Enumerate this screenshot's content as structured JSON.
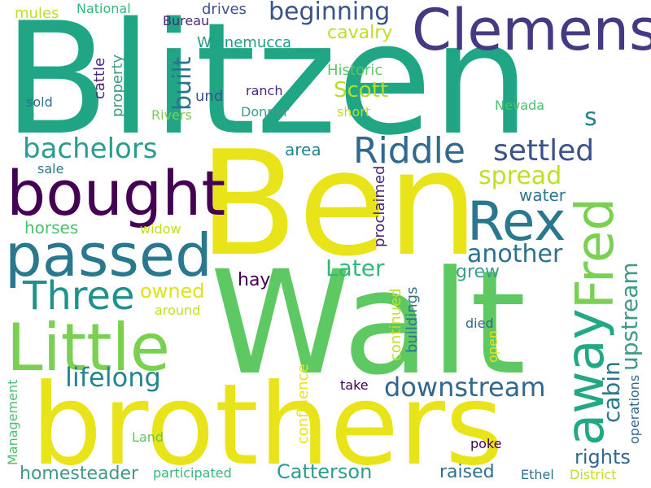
{
  "words": [
    {
      "text": "Blitzen",
      "color": "#21a685"
    },
    {
      "text": "Ben",
      "color": "#e8e419"
    },
    {
      "text": "Walt",
      "color": "#5ec962"
    },
    {
      "text": "brothers",
      "color": "#e8e419"
    },
    {
      "text": "Clemens",
      "color": "#443a83"
    },
    {
      "text": "bought",
      "color": "#440154"
    },
    {
      "text": "passed",
      "color": "#2a788e"
    },
    {
      "text": "Little",
      "color": "#7ad151"
    },
    {
      "text": "Rex",
      "color": "#2a788e"
    },
    {
      "text": "away",
      "color": "#22a884"
    },
    {
      "text": "Fred",
      "color": "#7ad151"
    },
    {
      "text": "Riddle",
      "color": "#31688e"
    },
    {
      "text": "Three",
      "color": "#20928c"
    },
    {
      "text": "settled",
      "color": "#3b528b"
    },
    {
      "text": "bachelors",
      "color": "#2a9d8f"
    },
    {
      "text": "beginning",
      "color": "#3b528b"
    },
    {
      "text": "built",
      "color": "#2c728e"
    },
    {
      "text": "lifelong",
      "color": "#25858e"
    },
    {
      "text": "downstream",
      "color": "#31688e"
    },
    {
      "text": "upstream",
      "color": "#3f9a86"
    },
    {
      "text": "cabin",
      "color": "#2a788e"
    },
    {
      "text": "Later",
      "color": "#35b779"
    },
    {
      "text": "another",
      "color": "#2c728e"
    },
    {
      "text": "spread",
      "color": "#bddf26"
    },
    {
      "text": "Scott",
      "color": "#b5de2b"
    },
    {
      "text": "Catterson",
      "color": "#2a9d8f"
    },
    {
      "text": "rights",
      "color": "#31688e"
    },
    {
      "text": "homesteader",
      "color": "#3f9a86"
    },
    {
      "text": "raised",
      "color": "#2c728e"
    },
    {
      "text": "owned",
      "color": "#dde318"
    },
    {
      "text": "cavalry",
      "color": "#bddf26"
    },
    {
      "text": "hay",
      "color": "#440154"
    },
    {
      "text": "water",
      "color": "#2a788e"
    },
    {
      "text": "grew",
      "color": "#3b9f89"
    },
    {
      "text": "area",
      "color": "#25858e"
    },
    {
      "text": "horses",
      "color": "#4ac16d"
    },
    {
      "text": "s",
      "color": "#26828e"
    },
    {
      "text": "Historic",
      "color": "#5cc863"
    },
    {
      "text": "Winnemucca",
      "color": "#1f9e89"
    },
    {
      "text": "mules",
      "color": "#bddf26"
    },
    {
      "text": "Bureau",
      "color": "#482878"
    },
    {
      "text": "drives",
      "color": "#3b528b"
    },
    {
      "text": "National",
      "color": "#35b779"
    },
    {
      "text": "ranch",
      "color": "#482878"
    },
    {
      "text": "und",
      "color": "#3b528b"
    },
    {
      "text": "Donner",
      "color": "#3f9a86"
    },
    {
      "text": "Rivers",
      "color": "#7ad151"
    },
    {
      "text": "short",
      "color": "#bddf26"
    },
    {
      "text": "Nevada",
      "color": "#4ac16d"
    },
    {
      "text": "sold",
      "color": "#2c728e"
    },
    {
      "text": "sale",
      "color": "#2a788e"
    },
    {
      "text": "widow",
      "color": "#c2df23"
    },
    {
      "text": "around",
      "color": "#c2df23"
    },
    {
      "text": "died",
      "color": "#31688e"
    },
    {
      "text": "take",
      "color": "#440154"
    },
    {
      "text": "poke",
      "color": "#440154"
    },
    {
      "text": "Land",
      "color": "#5ec962"
    },
    {
      "text": "participated",
      "color": "#35b779"
    },
    {
      "text": "Ethel",
      "color": "#2c728e"
    },
    {
      "text": "District",
      "color": "#bddf26"
    },
    {
      "text": "cattle",
      "color": "#482878"
    },
    {
      "text": "property",
      "color": "#3f9a86"
    },
    {
      "text": "proclaimed",
      "color": "#482878"
    },
    {
      "text": "continued",
      "color": "#c2df23"
    },
    {
      "text": "buildings",
      "color": "#2c728e"
    },
    {
      "text": "open",
      "color": "#e8e419"
    },
    {
      "text": "confluence",
      "color": "#e8e419"
    },
    {
      "text": "operations",
      "color": "#31688e"
    },
    {
      "text": "Management",
      "color": "#4ac16d"
    }
  ]
}
